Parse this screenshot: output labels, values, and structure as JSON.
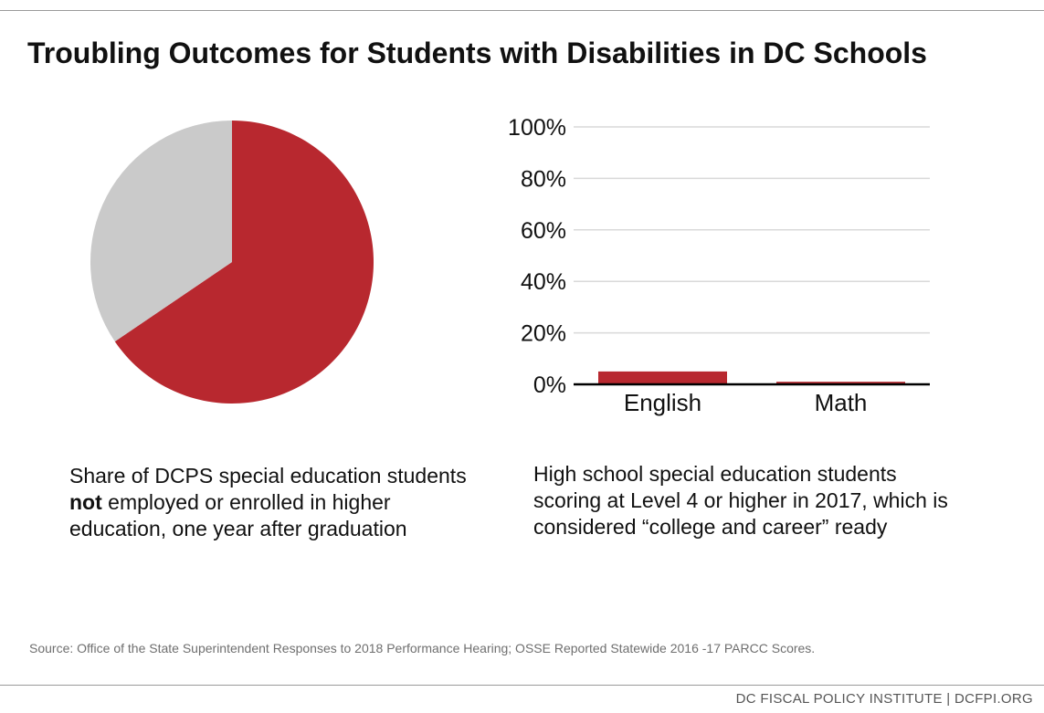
{
  "title": "Troubling Outcomes for Students with Disabilities in DC Schools",
  "colors": {
    "accent": "#B8282F",
    "remainder": "#CACACA",
    "grid": "#D9D9D9",
    "axis": "#000000"
  },
  "chart_data": [
    {
      "type": "pie",
      "slices": [
        {
          "label": "not employed or enrolled",
          "value": 65.5,
          "color": "#B8282F"
        },
        {
          "label": "employed or enrolled",
          "value": 34.5,
          "color": "#CACACA"
        }
      ],
      "caption": {
        "before": "Share of DCPS special education students ",
        "bold": "not",
        "after": " employed or enrolled in higher education, one year after graduation"
      }
    },
    {
      "type": "bar",
      "categories": [
        "English",
        "Math"
      ],
      "values": [
        5,
        1
      ],
      "ylim": [
        0,
        100
      ],
      "yticks": [
        0,
        20,
        40,
        60,
        80,
        100
      ],
      "ytick_labels": [
        "0%",
        "20%",
        "40%",
        "60%",
        "80%",
        "100%"
      ],
      "grid": true,
      "caption": "High school special education students scoring at Level 4 or higher in 2017, which is considered “college and career” ready"
    }
  ],
  "source": "Source: Office of the State Superintendent Responses to 2018 Performance Hearing; OSSE Reported Statewide 2016 -17 PARCC Scores.",
  "footer": "DC FISCAL POLICY INSTITUTE | DCFPI.ORG"
}
